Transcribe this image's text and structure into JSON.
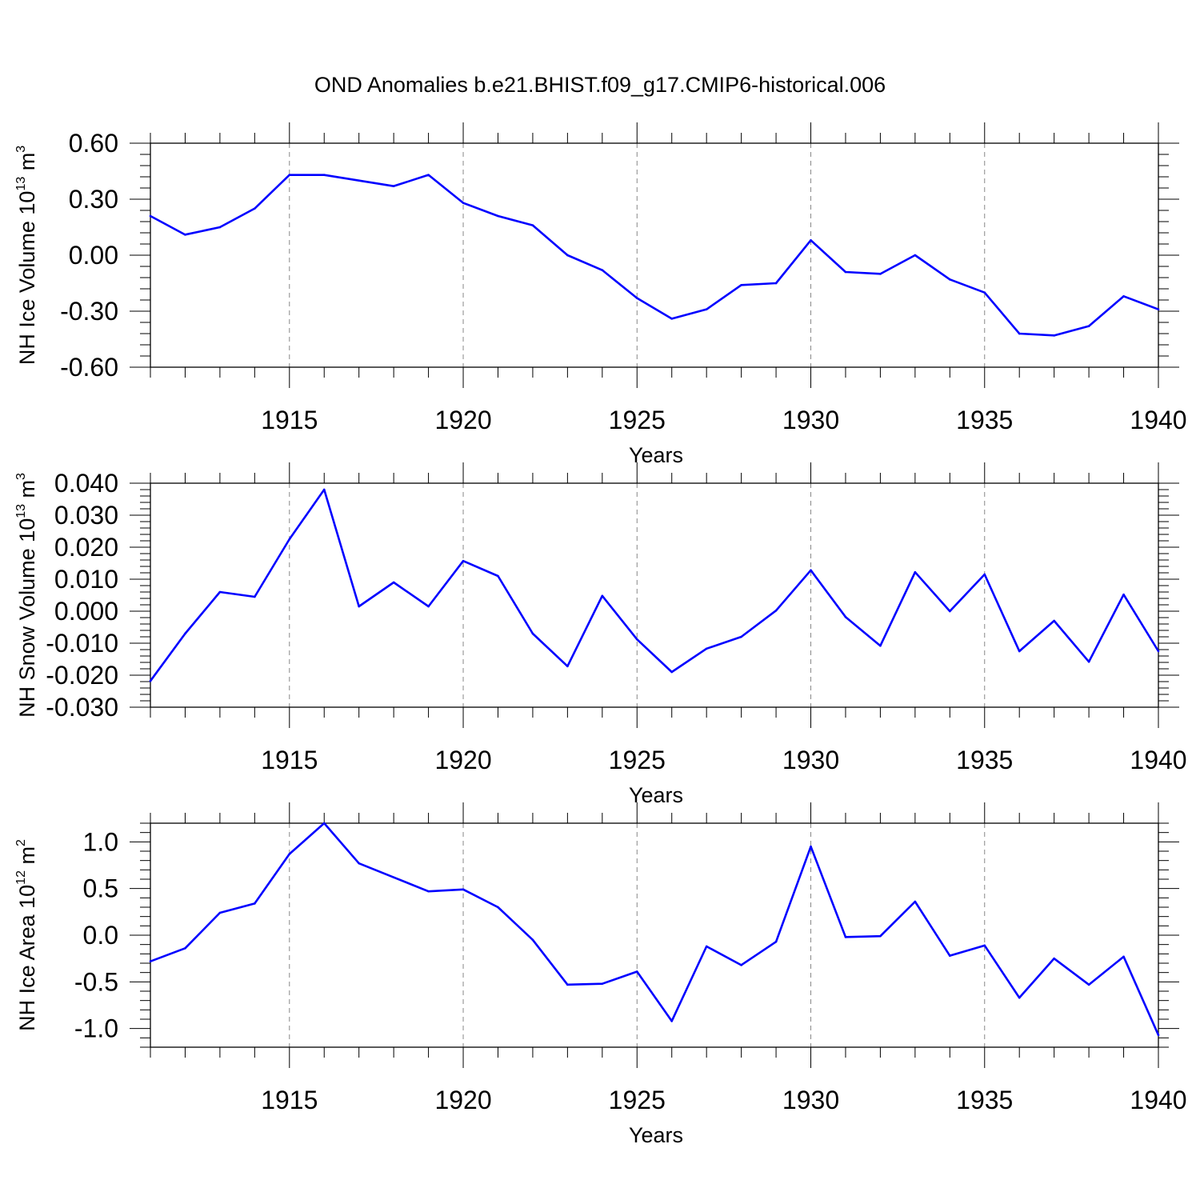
{
  "chart_data": [
    {
      "type": "line",
      "title": "OND Anomalies b.e21.BHIST.f09_g17.CMIP6-historical.006",
      "xlabel": "Years",
      "ylabel": {
        "text": "NH Ice Volume 10",
        "sup": "13",
        "unit": " m",
        "unit_sup": "3"
      },
      "xlim": [
        1911,
        1940
      ],
      "ylim": [
        -0.6,
        0.6
      ],
      "xticks": [
        "1915",
        "1920",
        "1925",
        "1930",
        "1935",
        "1940"
      ],
      "yticks": [
        "0.60",
        "0.30",
        "0.00",
        "-0.30",
        "-0.60"
      ],
      "line_color": "#0000ff",
      "grid": "dashed vertical at labeled years",
      "series": [
        {
          "name": "NH Ice Volume",
          "x": [
            1911,
            1912,
            1913,
            1914,
            1915,
            1916,
            1917,
            1918,
            1919,
            1920,
            1921,
            1922,
            1923,
            1924,
            1925,
            1926,
            1927,
            1928,
            1929,
            1930,
            1931,
            1932,
            1933,
            1934,
            1935,
            1936,
            1937,
            1938,
            1939,
            1940
          ],
          "values": [
            0.21,
            0.11,
            0.15,
            0.25,
            0.43,
            0.43,
            0.4,
            0.37,
            0.43,
            0.28,
            0.21,
            0.16,
            0.0,
            -0.08,
            -0.23,
            -0.34,
            -0.29,
            -0.16,
            -0.15,
            0.08,
            -0.09,
            -0.1,
            0.0,
            -0.13,
            -0.2,
            -0.42,
            -0.43,
            -0.38,
            -0.22,
            -0.29
          ]
        }
      ]
    },
    {
      "type": "line",
      "title": "",
      "xlabel": "Years",
      "ylabel": {
        "text": "NH Snow Volume 10",
        "sup": "13",
        "unit": " m",
        "unit_sup": "3"
      },
      "xlim": [
        1911,
        1940
      ],
      "ylim": [
        -0.03,
        0.04
      ],
      "xticks": [
        "1915",
        "1920",
        "1925",
        "1930",
        "1935",
        "1940"
      ],
      "yticks": [
        "0.040",
        "0.030",
        "0.020",
        "0.010",
        "0.000",
        "-0.010",
        "-0.020",
        "-0.030"
      ],
      "line_color": "#0000ff",
      "grid": "dashed vertical at labeled years",
      "series": [
        {
          "name": "NH Snow Volume",
          "x": [
            1911,
            1912,
            1913,
            1914,
            1915,
            1916,
            1917,
            1918,
            1919,
            1920,
            1921,
            1922,
            1923,
            1924,
            1925,
            1926,
            1927,
            1928,
            1929,
            1930,
            1931,
            1932,
            1933,
            1934,
            1935,
            1936,
            1937,
            1938,
            1939,
            1940
          ],
          "values": [
            -0.0218,
            -0.007,
            0.006,
            0.0045,
            0.0225,
            0.038,
            0.0015,
            0.009,
            0.0015,
            0.0157,
            0.011,
            -0.007,
            -0.0172,
            0.0048,
            -0.0088,
            -0.019,
            -0.0117,
            -0.008,
            0.0002,
            0.0128,
            -0.0018,
            -0.0108,
            0.0122,
            0.0,
            0.0115,
            -0.0125,
            -0.003,
            -0.0158,
            0.0052,
            -0.0125
          ]
        }
      ]
    },
    {
      "type": "line",
      "title": "",
      "xlabel": "Years",
      "ylabel": {
        "text": "NH Ice Area 10",
        "sup": "12",
        "unit": " m",
        "unit_sup": "2"
      },
      "xlim": [
        1911,
        1940
      ],
      "ylim": [
        -1.2,
        1.2
      ],
      "xticks": [
        "1915",
        "1920",
        "1925",
        "1930",
        "1935",
        "1940"
      ],
      "yticks": [
        "1.0",
        "0.5",
        "0.0",
        "-0.5",
        "-1.0"
      ],
      "line_color": "#0000ff",
      "grid": "dashed vertical at labeled years",
      "series": [
        {
          "name": "NH Ice Area",
          "x": [
            1911,
            1912,
            1913,
            1914,
            1915,
            1916,
            1917,
            1918,
            1919,
            1920,
            1921,
            1922,
            1923,
            1924,
            1925,
            1926,
            1927,
            1928,
            1929,
            1930,
            1931,
            1932,
            1933,
            1934,
            1935,
            1936,
            1937,
            1938,
            1939,
            1940
          ],
          "values": [
            -0.28,
            -0.14,
            0.24,
            0.34,
            0.87,
            1.2,
            0.77,
            0.62,
            0.47,
            0.49,
            0.3,
            -0.05,
            -0.53,
            -0.52,
            -0.39,
            -0.92,
            -0.12,
            -0.32,
            -0.07,
            0.95,
            -0.02,
            -0.01,
            0.36,
            -0.22,
            -0.11,
            -0.67,
            -0.25,
            -0.53,
            -0.23,
            -1.07
          ]
        }
      ]
    }
  ]
}
